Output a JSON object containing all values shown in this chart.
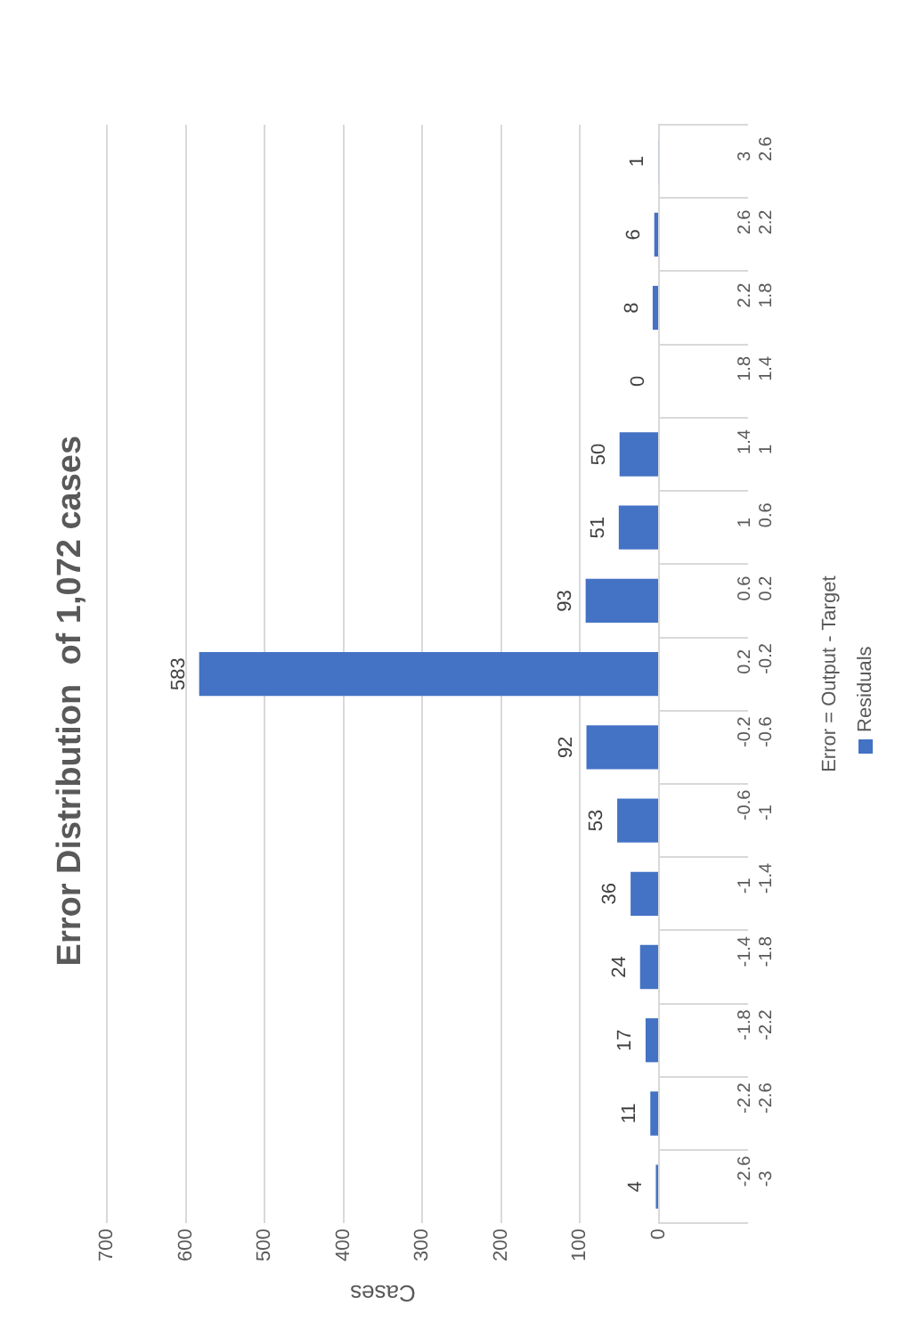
{
  "chart_data": {
    "type": "bar",
    "orientation": "horizontal",
    "title": "Error Distribution  of 1,072 cases",
    "xlabel": "Cases",
    "ylabel": "Error = Output - Target",
    "categories": [
      "3\n2.6",
      "2.6\n2.2",
      "2.2\n1.8",
      "1.8\n1.4",
      "1.4\n1",
      "1\n0.6",
      "0.6\n0.2",
      "0.2\n-0.2",
      "-0.2\n-0.6",
      "-0.6\n-1",
      "-1\n-1.4",
      "-1.4\n-1.8",
      "-1.8\n-2.2",
      "-2.2\n-2.6",
      "-2.6\n-3"
    ],
    "series": [
      {
        "name": "Residuals",
        "color": "#4472c4",
        "values": [
          1,
          6,
          8,
          0,
          50,
          51,
          93,
          583,
          92,
          53,
          36,
          24,
          17,
          11,
          4
        ]
      }
    ],
    "xlim": [
      700,
      0
    ],
    "xticks": [
      0,
      100,
      200,
      300,
      400,
      500,
      600,
      700
    ],
    "grid": "x",
    "legend": "bottom",
    "data_labels": true
  }
}
